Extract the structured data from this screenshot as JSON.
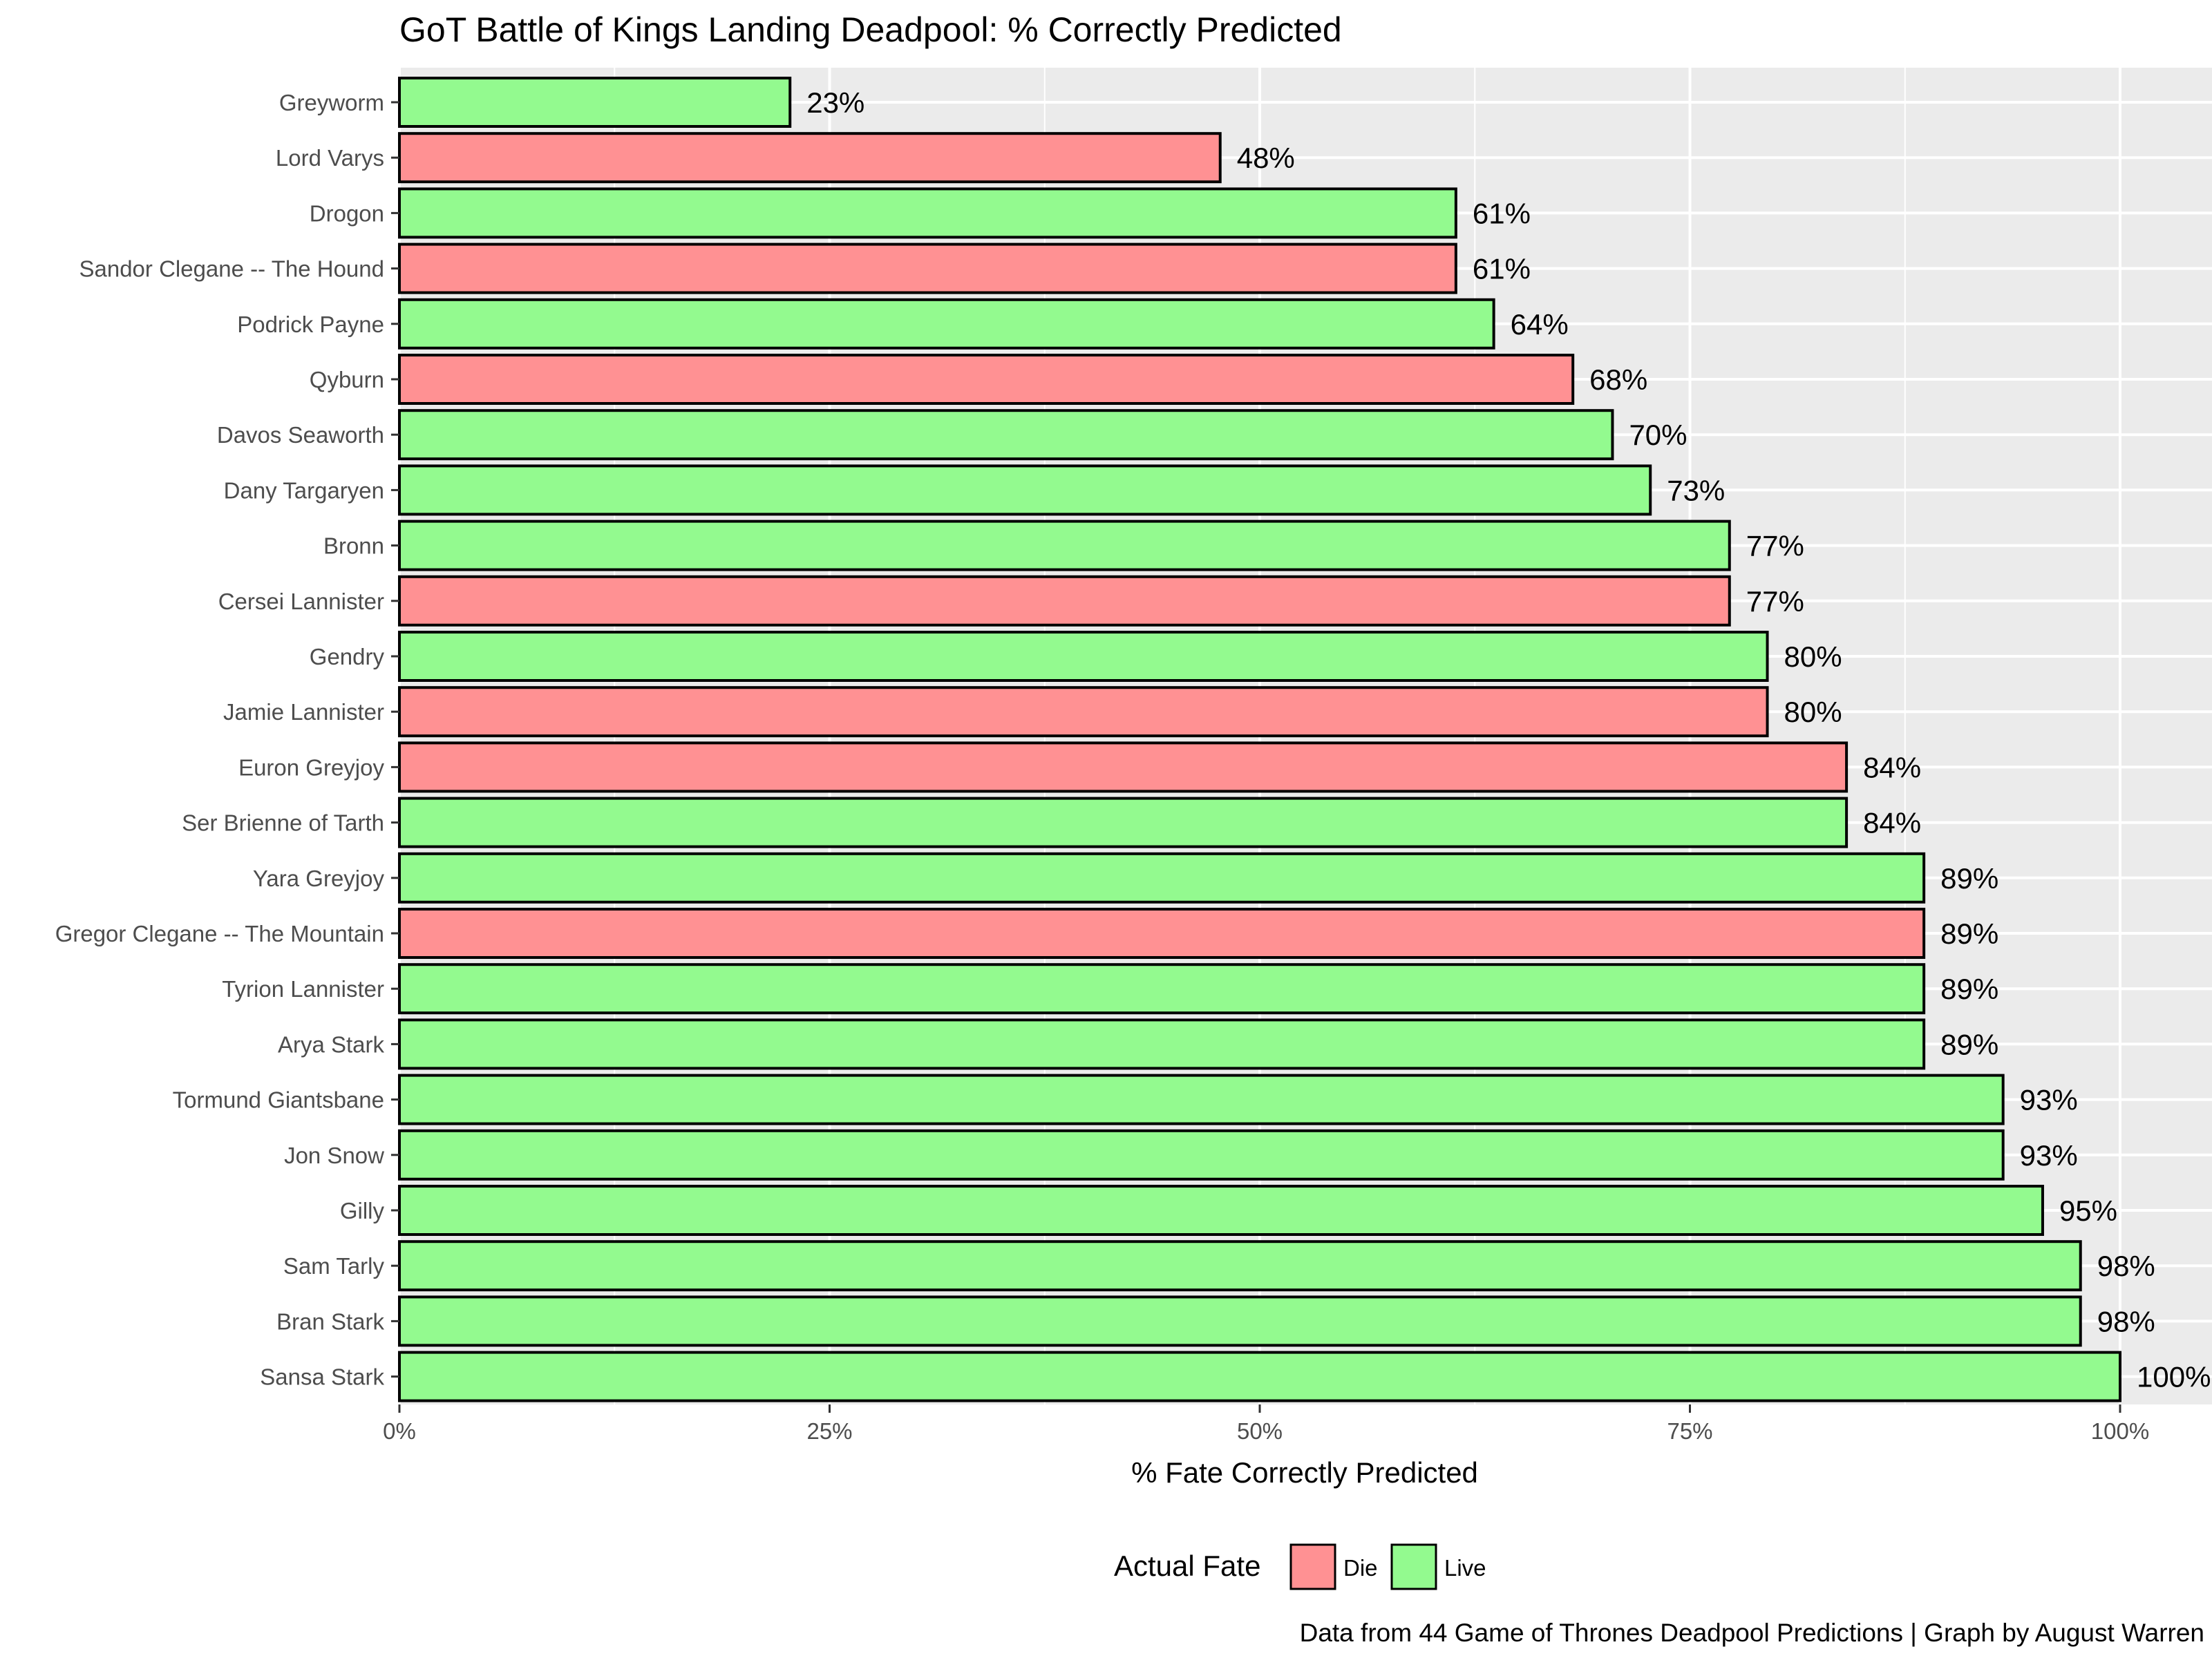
{
  "chart_data": {
    "type": "bar",
    "orientation": "horizontal",
    "title": "GoT Battle of Kings Landing Deadpool: % Correctly Predicted",
    "xlabel": "% Fate Correctly Predicted",
    "ylabel": "",
    "xlim": [
      0,
      100
    ],
    "x_ticks": [
      "0%",
      "25%",
      "50%",
      "75%",
      "100%"
    ],
    "grid": true,
    "legend": {
      "title": "Actual Fate",
      "position": "bottom",
      "entries": [
        {
          "label": "Die",
          "color": "#ff9193"
        },
        {
          "label": "Live",
          "color": "#93fa8f"
        }
      ]
    },
    "caption": "Data from 44 Game of Thrones Deadpool Predictions | Graph by August Warren",
    "categories": [
      "Greyworm",
      "Lord Varys",
      "Drogon",
      "Sandor Clegane -- The Hound",
      "Podrick Payne",
      "Qyburn",
      "Davos Seaworth",
      "Dany Targaryen",
      "Bronn",
      "Cersei Lannister",
      "Gendry",
      "Jamie Lannister",
      "Euron Greyjoy",
      "Ser Brienne of Tarth",
      "Yara Greyjoy",
      "Gregor Clegane -- The Mountain",
      "Tyrion Lannister",
      "Arya Stark",
      "Tormund Giantsbane",
      "Jon Snow",
      "Gilly",
      "Sam Tarly",
      "Bran Stark",
      "Sansa Stark"
    ],
    "values": [
      22.7,
      47.7,
      61.4,
      61.4,
      63.6,
      68.2,
      70.5,
      72.7,
      77.3,
      77.3,
      79.5,
      79.5,
      84.1,
      84.1,
      88.6,
      88.6,
      88.6,
      88.6,
      93.2,
      93.2,
      95.5,
      97.7,
      97.7,
      100
    ],
    "labels": [
      "23%",
      "48%",
      "61%",
      "61%",
      "64%",
      "68%",
      "70%",
      "73%",
      "77%",
      "77%",
      "80%",
      "80%",
      "84%",
      "84%",
      "89%",
      "89%",
      "89%",
      "89%",
      "93%",
      "93%",
      "95%",
      "98%",
      "98%",
      "100%"
    ],
    "fate": [
      "Live",
      "Die",
      "Live",
      "Die",
      "Live",
      "Die",
      "Live",
      "Live",
      "Live",
      "Die",
      "Live",
      "Die",
      "Die",
      "Live",
      "Live",
      "Die",
      "Live",
      "Live",
      "Live",
      "Live",
      "Live",
      "Live",
      "Live",
      "Live"
    ]
  },
  "colors": {
    "die": "#ff9193",
    "live": "#93fa8f",
    "panel": "#ebebeb",
    "grid": "#ffffff"
  }
}
